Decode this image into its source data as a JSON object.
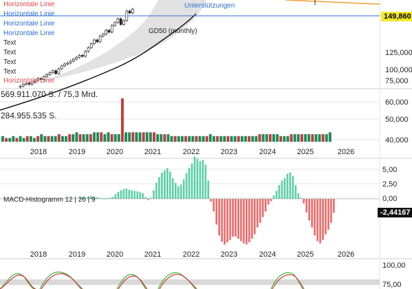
{
  "price_panel": {
    "legend": [
      {
        "text": "Horizontale Linie",
        "color": "#e04848"
      },
      {
        "text": "Horizontale Linie",
        "color": "#2a6ecf"
      },
      {
        "text": "Horizontale Linie",
        "color": "#2a6ecf"
      },
      {
        "text": "Horizontale Linie",
        "color": "#2a6ecf"
      },
      {
        "text": "Text",
        "color": "#222222"
      },
      {
        "text": "Text",
        "color": "#222222"
      },
      {
        "text": "Text",
        "color": "#222222"
      },
      {
        "text": "Text",
        "color": "#222222"
      },
      {
        "text": "Horizontale Linie",
        "color": "#e04848"
      }
    ],
    "unterstuetzungen": "Unterstützungen",
    "gd50_label": "GD50 (monthly)",
    "current_price": "149,860",
    "y_ticks": [
      "125,000",
      "100,000",
      "75,000"
    ]
  },
  "volume_panel": {
    "max_label": "569.911.070 S. / 75,3 Mrd.",
    "mid_label": "284.955.535 S.",
    "y_ticks": [
      "60,000",
      "50,000",
      "40,000"
    ]
  },
  "macd_panel": {
    "title": "MACD-Histogramm  12 | 26 | 9",
    "current_value": "-2,44167",
    "y_ticks": [
      "5,00",
      "2,50",
      "0,00"
    ]
  },
  "stoch_panel": {
    "y_ticks": [
      "100,00",
      "75,00"
    ]
  },
  "x_axis_years": [
    "2018",
    "2019",
    "2020",
    "2021",
    "2022",
    "2023",
    "2024",
    "2025",
    "2026"
  ],
  "colors": {
    "up": "#1e8a5a",
    "down": "#c83a3a",
    "hist_pos": "#5fcfa8",
    "hist_neg": "#ee6b6b",
    "price_line": "#2a6ecf",
    "band": "#d8d8d8",
    "orange": "#f0a030",
    "stoch_red": "#d83030",
    "stoch_green": "#3ab83a"
  },
  "chart_data": [
    {
      "type": "line",
      "name": "price",
      "x": [
        "2017-12",
        "2018-03",
        "2018-06",
        "2018-09",
        "2018-12",
        "2019-03",
        "2019-06",
        "2019-09",
        "2019-12",
        "2020-03",
        "2020-06",
        "2020-09",
        "2020-12",
        "2021-03"
      ],
      "values": [
        70,
        73,
        78,
        82,
        84,
        90,
        95,
        104,
        118,
        120,
        130,
        140,
        145,
        150
      ],
      "horizontal_line": 149.86
    },
    {
      "type": "bar",
      "name": "volume",
      "x_start": "2017-12",
      "x_end": "2025-09",
      "values": [
        43,
        42,
        42,
        43,
        42,
        43,
        42,
        43,
        43,
        42,
        43,
        44,
        43,
        43,
        43,
        43,
        44,
        43,
        43,
        44,
        44,
        45,
        44,
        44,
        44,
        44,
        45,
        45,
        45,
        44,
        45,
        44,
        44,
        44,
        63,
        45,
        45,
        45,
        45,
        45,
        45,
        45,
        45,
        45,
        44,
        44,
        44,
        44,
        43,
        43,
        43,
        43,
        43,
        43,
        43,
        43,
        43,
        43,
        43,
        44,
        43,
        43,
        43,
        43,
        43,
        43,
        43,
        43,
        43,
        43,
        43,
        43,
        43,
        44,
        44,
        44,
        44,
        44,
        44,
        43,
        43,
        43,
        44,
        44,
        44,
        44,
        44,
        44,
        44,
        44,
        44,
        44,
        44,
        45
      ],
      "ylim": [
        40,
        63
      ]
    },
    {
      "type": "bar",
      "name": "MACD-Histogramm 12 | 26 | 9",
      "x_start": "2017-12",
      "x_end": "2025-09",
      "values": [
        0.2,
        0.3,
        0.2,
        0.4,
        0.5,
        0.4,
        0.3,
        0.2,
        0.1,
        0.0,
        0.1,
        0.2,
        0.3,
        0.8,
        1.2,
        1.5,
        1.7,
        1.8,
        1.6,
        1.5,
        1.4,
        1.3,
        1.2,
        1.0,
        0.3,
        -0.2,
        0.2,
        1.5,
        2.8,
        3.8,
        4.6,
        5.0,
        5.4,
        4.8,
        3.6,
        2.8,
        2.2,
        2.5,
        3.4,
        4.5,
        5.4,
        6.2,
        7.4,
        7.0,
        6.6,
        6.8,
        6.0,
        3.2,
        -0.5,
        -2.2,
        -4.5,
        -6.4,
        -7.5,
        -8.0,
        -7.6,
        -7.2,
        -6.6,
        -6.6,
        -7.0,
        -7.4,
        -7.8,
        -8.0,
        -7.6,
        -7.0,
        -6.2,
        -5.0,
        -4.2,
        -3.2,
        -2.2,
        -1.0,
        -0.4,
        0.6,
        1.4,
        2.4,
        3.2,
        3.6,
        4.4,
        4.6,
        4.0,
        2.4,
        1.0,
        0.2,
        -0.8,
        -2.4,
        -3.8,
        -5.0,
        -6.4,
        -7.4,
        -7.8,
        -7.2,
        -6.2,
        -5.4,
        -4.2,
        -2.44
      ],
      "ylim": [
        -9,
        7
      ]
    }
  ]
}
